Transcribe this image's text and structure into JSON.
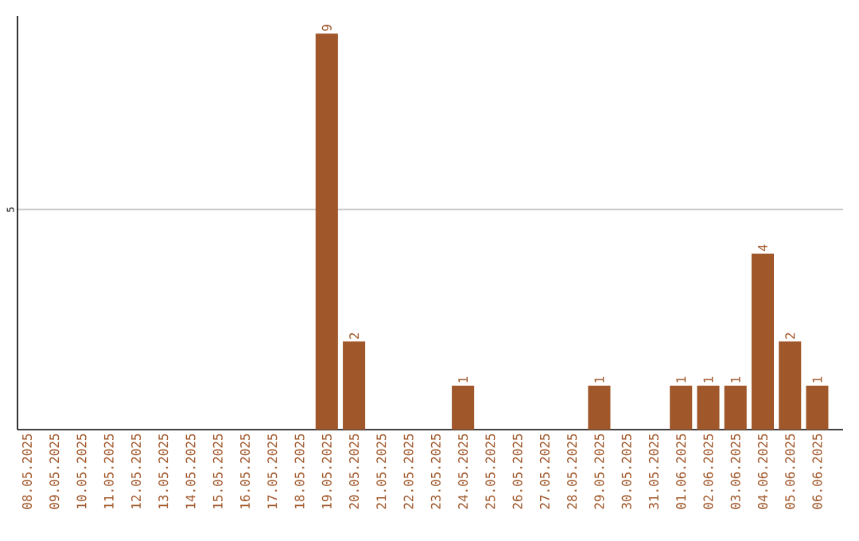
{
  "chart_data": {
    "type": "bar",
    "categories": [
      "08.05.2025",
      "09.05.2025",
      "10.05.2025",
      "11.05.2025",
      "12.05.2025",
      "13.05.2025",
      "14.05.2025",
      "15.05.2025",
      "16.05.2025",
      "17.05.2025",
      "18.05.2025",
      "19.05.2025",
      "20.05.2025",
      "21.05.2025",
      "22.05.2025",
      "23.05.2025",
      "24.05.2025",
      "25.05.2025",
      "26.05.2025",
      "27.05.2025",
      "28.05.2025",
      "29.05.2025",
      "30.05.2025",
      "31.05.2025",
      "01.06.2025",
      "02.06.2025",
      "03.06.2025",
      "04.06.2025",
      "05.06.2025",
      "06.06.2025"
    ],
    "values": [
      0,
      0,
      0,
      0,
      0,
      0,
      0,
      0,
      0,
      0,
      0,
      9,
      2,
      0,
      0,
      0,
      1,
      0,
      0,
      0,
      0,
      1,
      0,
      0,
      1,
      1,
      1,
      4,
      2,
      1
    ],
    "value_labels": [
      null,
      null,
      null,
      null,
      null,
      null,
      null,
      null,
      null,
      null,
      null,
      "9",
      "2",
      null,
      null,
      null,
      "1",
      null,
      null,
      null,
      null,
      "1",
      null,
      null,
      "1",
      "1",
      "1",
      "4",
      "2",
      "1"
    ],
    "color": "#a0572a",
    "ylim": [
      0,
      9.4
    ],
    "yticks": [
      5
    ],
    "grid": "y"
  }
}
